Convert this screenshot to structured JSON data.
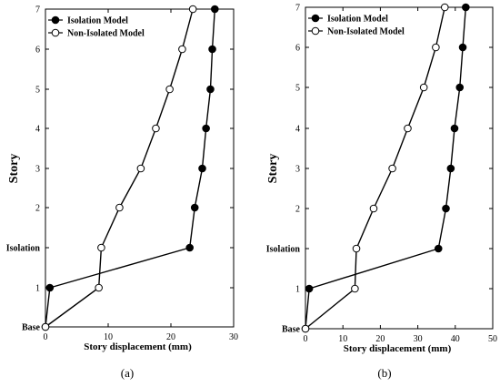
{
  "chart_data": [
    {
      "type": "line",
      "caption": "(a)",
      "xlabel": "Story displacement (mm)",
      "ylabel": "Story",
      "xlim": [
        0,
        30
      ],
      "xticks": [
        0,
        10,
        20,
        30
      ],
      "levels": [
        "Base",
        "1",
        "Isolation",
        "2",
        "3",
        "4",
        "5",
        "6",
        "7"
      ],
      "legend_position": "top-left",
      "series": [
        {
          "name": "Isolation Model",
          "marker": "filled-circle",
          "values": [
            0,
            0.7,
            23,
            23.8,
            25,
            25.6,
            26.3,
            26.6,
            27
          ]
        },
        {
          "name": "Non-Isolated Model",
          "marker": "open-circle",
          "values": [
            0,
            8.5,
            8.9,
            11.8,
            15.2,
            17.6,
            19.8,
            21.8,
            23.5
          ]
        }
      ]
    },
    {
      "type": "line",
      "caption": "(b)",
      "xlabel": "Story displacement (mm)",
      "ylabel": "Story",
      "xlim": [
        0,
        50
      ],
      "xticks": [
        0,
        10,
        20,
        30,
        40,
        50
      ],
      "levels": [
        "Base",
        "1",
        "Isolation",
        "2",
        "3",
        "4",
        "5",
        "6",
        "7"
      ],
      "legend_position": "top-left",
      "series": [
        {
          "name": "Isolation Model",
          "marker": "filled-circle",
          "values": [
            0,
            1,
            35.5,
            37.5,
            38.8,
            39.8,
            41.2,
            42,
            42.8
          ]
        },
        {
          "name": "Non-Isolated Model",
          "marker": "open-circle",
          "values": [
            0,
            13.2,
            13.6,
            18.2,
            23.2,
            27.3,
            31.6,
            34.8,
            37.2
          ]
        }
      ]
    }
  ]
}
